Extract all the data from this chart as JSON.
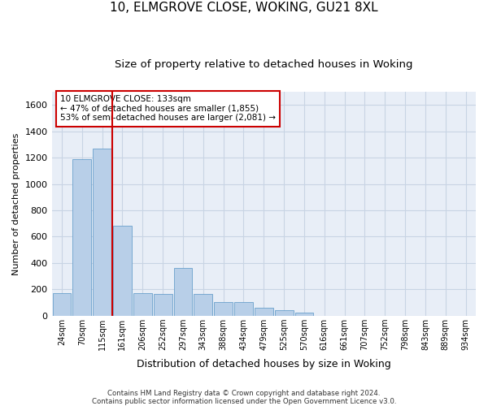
{
  "title": "10, ELMGROVE CLOSE, WOKING, GU21 8XL",
  "subtitle": "Size of property relative to detached houses in Woking",
  "xlabel": "Distribution of detached houses by size in Woking",
  "ylabel": "Number of detached properties",
  "categories": [
    "24sqm",
    "70sqm",
    "115sqm",
    "161sqm",
    "206sqm",
    "252sqm",
    "297sqm",
    "343sqm",
    "388sqm",
    "434sqm",
    "479sqm",
    "525sqm",
    "570sqm",
    "616sqm",
    "661sqm",
    "707sqm",
    "752sqm",
    "798sqm",
    "843sqm",
    "889sqm",
    "934sqm"
  ],
  "bar_heights": [
    170,
    1190,
    1270,
    680,
    170,
    165,
    360,
    165,
    100,
    100,
    60,
    40,
    20,
    0,
    0,
    0,
    0,
    0,
    0,
    0,
    0
  ],
  "bar_color": "#b8cfe8",
  "bar_edge_color": "#6aa0cc",
  "property_line_color": "#cc0000",
  "annotation_text": "10 ELMGROVE CLOSE: 133sqm\n← 47% of detached houses are smaller (1,855)\n53% of semi-detached houses are larger (2,081) →",
  "annotation_box_color": "#ffffff",
  "annotation_box_edge": "#cc0000",
  "ylim": [
    0,
    1700
  ],
  "yticks": [
    0,
    200,
    400,
    600,
    800,
    1000,
    1200,
    1400,
    1600
  ],
  "grid_color": "#c8d4e4",
  "bg_color": "#e8eef7",
  "footer": "Contains HM Land Registry data © Crown copyright and database right 2024.\nContains public sector information licensed under the Open Government Licence v3.0.",
  "title_fontsize": 11,
  "subtitle_fontsize": 9.5,
  "annotation_fontsize": 7.5,
  "ylabel_fontsize": 8,
  "xlabel_fontsize": 9
}
